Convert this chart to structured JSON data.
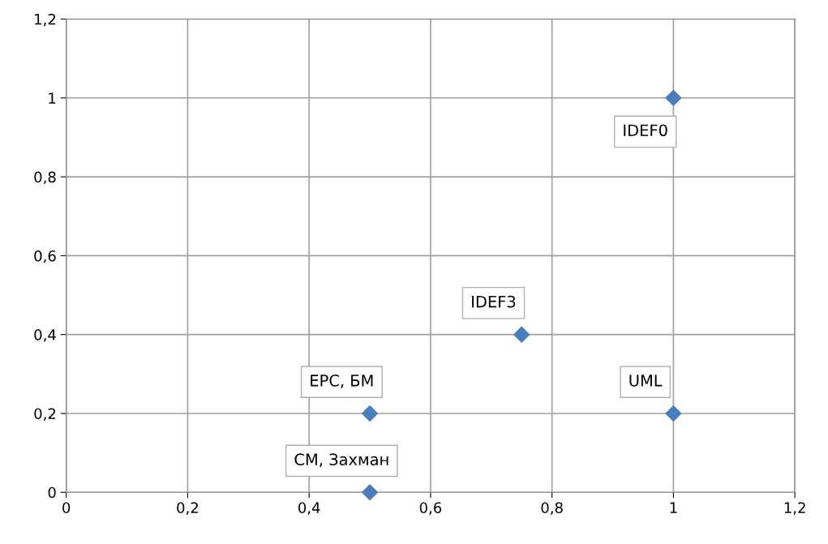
{
  "chart_data": {
    "type": "scatter",
    "x": [
      0.5,
      0.5,
      0.75,
      1,
      1
    ],
    "values": [
      0,
      0.2,
      0.4,
      1,
      0.2
    ],
    "color": "#4a7ebb",
    "marker": "diamond",
    "grid": true,
    "legend": false,
    "xlim": [
      0,
      1.2
    ],
    "ylim": [
      0,
      1.2
    ],
    "xticks": [
      0,
      {
        "value": 0.2,
        "label": "0,2"
      },
      {
        "value": 0.4,
        "label": "0,4"
      },
      {
        "value": 0.6,
        "label": "0,6"
      },
      {
        "value": 0.8,
        "label": "0,8"
      },
      1,
      {
        "value": 1.2,
        "label": "1,2"
      }
    ],
    "yticks": [
      0,
      {
        "value": 0.2,
        "label": "0,2"
      },
      {
        "value": 0.4,
        "label": "0,4"
      },
      {
        "value": 0.6,
        "label": "0,6"
      },
      {
        "value": 0.8,
        "label": "0,8"
      },
      1,
      {
        "value": 1.2,
        "label": "1,2"
      }
    ],
    "annotations": [
      {
        "text": "CM, Захман",
        "x": 0.5,
        "y": 0
      },
      {
        "text": "EPC, БМ",
        "x": 0.5,
        "y": 0.2
      },
      {
        "text": "IDEF3",
        "x": 0.75,
        "y": 0.4
      },
      {
        "text": "IDEF0",
        "x": 1,
        "y": 1
      },
      {
        "text": "UML",
        "x": 1,
        "y": 0.2
      }
    ]
  }
}
